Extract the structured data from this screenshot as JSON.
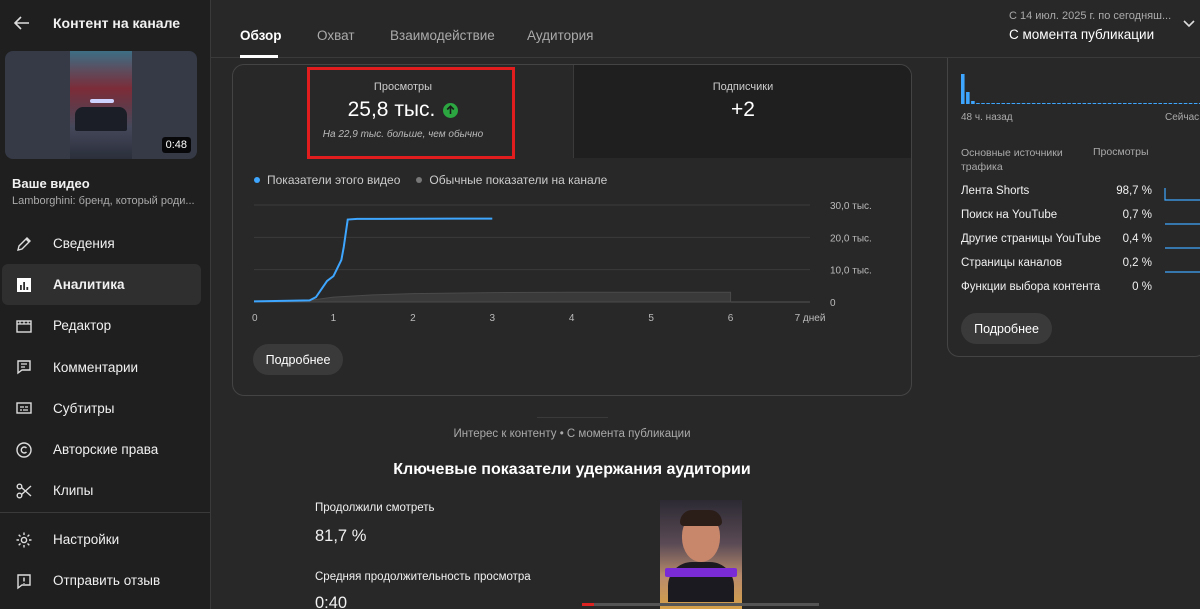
{
  "sidebar": {
    "title": "Контент на канале",
    "thumbnail_duration": "0:48",
    "your_video": "Ваше видео",
    "video_title": "Lamborghini: бренд, который роди...",
    "items": [
      {
        "label": "Сведения",
        "icon": "pencil-icon"
      },
      {
        "label": "Аналитика",
        "icon": "analytics-icon",
        "active": true
      },
      {
        "label": "Редактор",
        "icon": "editor-icon"
      },
      {
        "label": "Комментарии",
        "icon": "comments-icon"
      },
      {
        "label": "Субтитры",
        "icon": "subtitles-icon"
      },
      {
        "label": "Авторские права",
        "icon": "copyright-icon"
      },
      {
        "label": "Клипы",
        "icon": "scissors-icon"
      }
    ],
    "bottom_items": [
      {
        "label": "Настройки",
        "icon": "gear-icon"
      },
      {
        "label": "Отправить отзыв",
        "icon": "feedback-icon"
      }
    ]
  },
  "tabs": [
    "Обзор",
    "Охват",
    "Взаимодействие",
    "Аудитория"
  ],
  "date_range": {
    "top": "С 14 июл. 2025 г. по сегодняш...",
    "main": "С момента публикации"
  },
  "metrics": {
    "views": {
      "label": "Просмотры",
      "value": "25,8 тыс.",
      "note": "На 22,9 тыс. больше, чем обычно"
    },
    "subscribers": {
      "label": "Подписчики",
      "value": "+2"
    }
  },
  "legend": {
    "this_video": "Показатели этого видео",
    "typical": "Обычные показатели на канале"
  },
  "colors": {
    "accent": "#3ea6ff",
    "up": "#2ba640",
    "highlight": "#e11d1d",
    "typical": "#555555"
  },
  "chart_data": {
    "type": "line",
    "x_ticks": [
      "0",
      "1",
      "2",
      "3",
      "4",
      "5",
      "6",
      "7 дней"
    ],
    "y_ticks": [
      "30,0 тыс.",
      "20,0 тыс.",
      "10,0 тыс.",
      "0"
    ],
    "xlim": [
      0,
      7
    ],
    "ylim": [
      0,
      30000
    ],
    "grid": true,
    "series": [
      {
        "name": "Показатели этого видео",
        "x": [
          0,
          0.7,
          0.78,
          0.85,
          0.92,
          1.0,
          1.05,
          1.1,
          1.13,
          1.18,
          1.3,
          1.6,
          2.0,
          2.5,
          3.0
        ],
        "y": [
          200,
          500,
          1500,
          4000,
          6500,
          8000,
          10500,
          13000,
          17000,
          25500,
          25700,
          25700,
          25750,
          25800,
          25800
        ]
      },
      {
        "name": "Обычные показатели на канале",
        "x": [
          0,
          0.7,
          1,
          1.5,
          2,
          3,
          4,
          5,
          6
        ],
        "y": [
          0,
          500,
          1500,
          2200,
          2600,
          2900,
          3000,
          3000,
          3000
        ]
      }
    ]
  },
  "more_button": "Подробнее",
  "right_panel": {
    "axis_left": "48 ч. назад",
    "axis_right": "Сейчас",
    "sources_header": "Основные источники трафика",
    "views_header": "Просмотры",
    "sources": [
      {
        "label": "Лента Shorts",
        "value": "98,7 %"
      },
      {
        "label": "Поиск на YouTube",
        "value": "0,7 %"
      },
      {
        "label": "Другие страницы YouTube",
        "value": "0,4 %"
      },
      {
        "label": "Страницы каналов",
        "value": "0,2 %"
      },
      {
        "label": "Функции выбора контента",
        "value": "0 %"
      }
    ],
    "more_button": "Подробнее",
    "spark_values": [
      10,
      4,
      1,
      0,
      0,
      0,
      0,
      0,
      0,
      0,
      0,
      0,
      0,
      0,
      0,
      0,
      0,
      0,
      0,
      0,
      0,
      0,
      0,
      0,
      0,
      0,
      0,
      0,
      0,
      0,
      0,
      0,
      0,
      0,
      0,
      0,
      0,
      0,
      0,
      0,
      0,
      0,
      0,
      0,
      0,
      0,
      0,
      0
    ]
  },
  "interest": "Интерес к контенту • С момента публикации",
  "retention": {
    "title": "Ключевые показатели удержания аудитории",
    "continued_label": "Продолжили смотреть",
    "continued_value": "81,7 %",
    "avg_label": "Средняя продолжительность просмотра",
    "avg_value": "0:40",
    "progress": 0.05
  }
}
